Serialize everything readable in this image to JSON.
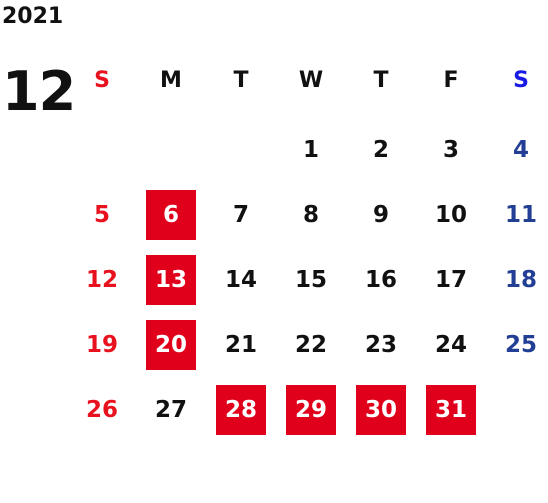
{
  "calendar": {
    "year": "2021",
    "month": "12",
    "weekdays": [
      "S",
      "M",
      "T",
      "W",
      "T",
      "F",
      "S"
    ],
    "weeks": [
      [
        "",
        "",
        "",
        "1",
        "2",
        "3",
        "4"
      ],
      [
        "5",
        "6",
        "7",
        "8",
        "9",
        "10",
        "11"
      ],
      [
        "12",
        "13",
        "14",
        "15",
        "16",
        "17",
        "18"
      ],
      [
        "19",
        "20",
        "21",
        "22",
        "23",
        "24",
        "25"
      ],
      [
        "26",
        "27",
        "28",
        "29",
        "30",
        "31",
        ""
      ]
    ],
    "highlighted_days": [
      "6",
      "13",
      "20",
      "28",
      "29",
      "30",
      "31"
    ],
    "colors": {
      "sunday": "#e8111e",
      "saturday": "#223f95",
      "saturday_header": "#1a1ae6",
      "highlight_bg": "#e0001b",
      "text": "#111111"
    }
  }
}
